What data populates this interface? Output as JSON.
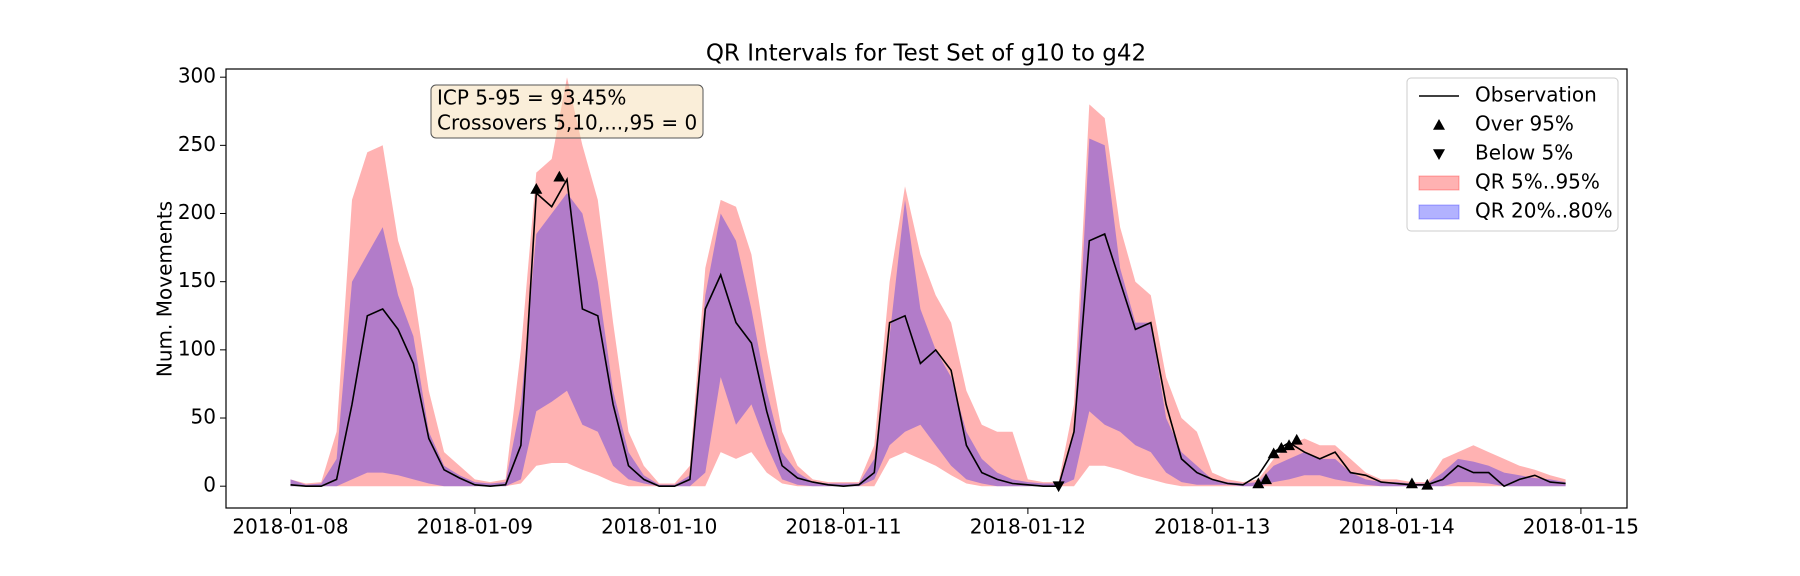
{
  "chart_data": {
    "type": "line",
    "title": "QR Intervals for Test Set of g10 to g42",
    "ylabel": "Num. Movements",
    "x": [
      0,
      2,
      4,
      6,
      8,
      10,
      12,
      14,
      16,
      18,
      20,
      22,
      24,
      26,
      28,
      30,
      32,
      34,
      36,
      38,
      40,
      42,
      44,
      46,
      48,
      50,
      52,
      54,
      56,
      58,
      60,
      62,
      64,
      66,
      68,
      70,
      72,
      74,
      76,
      78,
      80,
      82,
      84,
      86,
      88,
      90,
      92,
      94,
      96,
      98,
      100,
      102,
      104,
      106,
      108,
      110,
      112,
      114,
      116,
      118,
      120,
      122,
      124,
      126,
      128,
      130,
      132,
      134,
      136,
      138,
      140,
      142,
      144,
      146,
      148,
      150,
      152,
      154,
      156,
      158,
      160,
      162,
      164,
      166
    ],
    "xlim": [
      -8.4,
      174
    ],
    "xticks": [
      {
        "value": 0,
        "label": "2018-01-08"
      },
      {
        "value": 24,
        "label": "2018-01-09"
      },
      {
        "value": 48,
        "label": "2018-01-10"
      },
      {
        "value": 72,
        "label": "2018-01-11"
      },
      {
        "value": 96,
        "label": "2018-01-12"
      },
      {
        "value": 120,
        "label": "2018-01-13"
      },
      {
        "value": 144,
        "label": "2018-01-14"
      },
      {
        "value": 168,
        "label": "2018-01-15"
      }
    ],
    "ylim": [
      -16,
      306
    ],
    "yticks": [
      0,
      50,
      100,
      150,
      200,
      250,
      300
    ],
    "legend": "upper right",
    "bands": [
      {
        "name": "QR 5%..95%",
        "color": "#ff0000",
        "alpha": 0.3,
        "lower": [
          0,
          0,
          0,
          0,
          0,
          0,
          0,
          0,
          0,
          0,
          0,
          0,
          0,
          0,
          0,
          2,
          15,
          17,
          17,
          12,
          8,
          3,
          0,
          0,
          0,
          0,
          0,
          0,
          25,
          20,
          25,
          10,
          2,
          0,
          0,
          0,
          0,
          0,
          0,
          20,
          25,
          20,
          15,
          8,
          2,
          0,
          0,
          0,
          0,
          0,
          0,
          0,
          15,
          15,
          12,
          8,
          5,
          2,
          0,
          0,
          0,
          0,
          0,
          0,
          0,
          0,
          0,
          0,
          0,
          0,
          0,
          0,
          0,
          0,
          0,
          0,
          0,
          0,
          0,
          0,
          0,
          0,
          0,
          0
        ],
        "upper": [
          5,
          2,
          3,
          40,
          210,
          245,
          250,
          180,
          145,
          70,
          25,
          15,
          5,
          3,
          5,
          100,
          230,
          240,
          300,
          250,
          210,
          120,
          40,
          15,
          2,
          2,
          15,
          160,
          210,
          205,
          170,
          100,
          40,
          15,
          5,
          3,
          3,
          3,
          30,
          150,
          220,
          170,
          140,
          120,
          70,
          45,
          40,
          40,
          5,
          3,
          3,
          60,
          280,
          270,
          190,
          150,
          140,
          80,
          50,
          40,
          10,
          5,
          3,
          5,
          20,
          30,
          35,
          30,
          30,
          20,
          10,
          5,
          5,
          3,
          3,
          20,
          25,
          30,
          25,
          20,
          15,
          12,
          8,
          5
        ]
      },
      {
        "name": "QR 20%..80%",
        "color": "#0000ff",
        "alpha": 0.3,
        "lower": [
          0,
          0,
          0,
          0,
          5,
          10,
          10,
          8,
          5,
          2,
          0,
          0,
          0,
          0,
          0,
          5,
          55,
          62,
          70,
          45,
          40,
          15,
          5,
          2,
          0,
          0,
          0,
          10,
          80,
          45,
          60,
          30,
          5,
          1,
          0,
          0,
          0,
          0,
          5,
          30,
          40,
          45,
          30,
          15,
          5,
          2,
          0,
          0,
          0,
          0,
          0,
          5,
          55,
          45,
          40,
          30,
          25,
          10,
          3,
          1,
          1,
          1,
          0,
          0,
          3,
          5,
          8,
          8,
          5,
          3,
          1,
          0,
          0,
          0,
          0,
          0,
          3,
          3,
          2,
          0,
          0,
          0,
          0,
          0
        ],
        "upper": [
          5,
          1,
          2,
          20,
          150,
          170,
          190,
          140,
          110,
          40,
          15,
          8,
          3,
          2,
          3,
          60,
          185,
          200,
          215,
          200,
          150,
          70,
          25,
          8,
          1,
          1,
          8,
          140,
          200,
          180,
          130,
          70,
          25,
          10,
          3,
          2,
          2,
          2,
          20,
          110,
          210,
          130,
          100,
          80,
          40,
          20,
          10,
          5,
          3,
          2,
          2,
          40,
          255,
          250,
          160,
          120,
          120,
          50,
          25,
          15,
          5,
          3,
          2,
          3,
          15,
          20,
          25,
          20,
          20,
          10,
          5,
          3,
          3,
          2,
          2,
          10,
          20,
          18,
          15,
          10,
          8,
          6,
          5,
          3
        ]
      }
    ],
    "series": [
      {
        "name": "Observation",
        "color": "#000000",
        "values": [
          1,
          0,
          0,
          5,
          60,
          125,
          130,
          115,
          90,
          35,
          12,
          6,
          1,
          0,
          1,
          30,
          215,
          205,
          225,
          130,
          125,
          60,
          15,
          5,
          0,
          0,
          5,
          130,
          155,
          120,
          105,
          55,
          15,
          6,
          3,
          1,
          0,
          1,
          10,
          120,
          125,
          90,
          100,
          85,
          30,
          10,
          5,
          2,
          1,
          0,
          0,
          40,
          180,
          185,
          150,
          115,
          120,
          60,
          20,
          10,
          5,
          2,
          1,
          8,
          25,
          32,
          25,
          20,
          25,
          10,
          8,
          3,
          2,
          1,
          1,
          5,
          15,
          10,
          10,
          0,
          5,
          8,
          3,
          2
        ]
      }
    ],
    "markers": [
      {
        "name": "Over 95%",
        "marker": "^",
        "color": "#000000",
        "x": [
          32,
          35,
          126,
          127,
          128,
          129,
          130,
          131,
          146,
          148
        ],
        "values": [
          218,
          227,
          2,
          5,
          24,
          28,
          30,
          34,
          2,
          1
        ]
      },
      {
        "name": "Below 5%",
        "marker": "v",
        "color": "#000000",
        "x": [
          100
        ],
        "values": [
          0
        ]
      }
    ],
    "annotation": [
      "ICP 5-95 = 93.45%",
      "Crossovers 5,10,...,95 = 0"
    ]
  }
}
